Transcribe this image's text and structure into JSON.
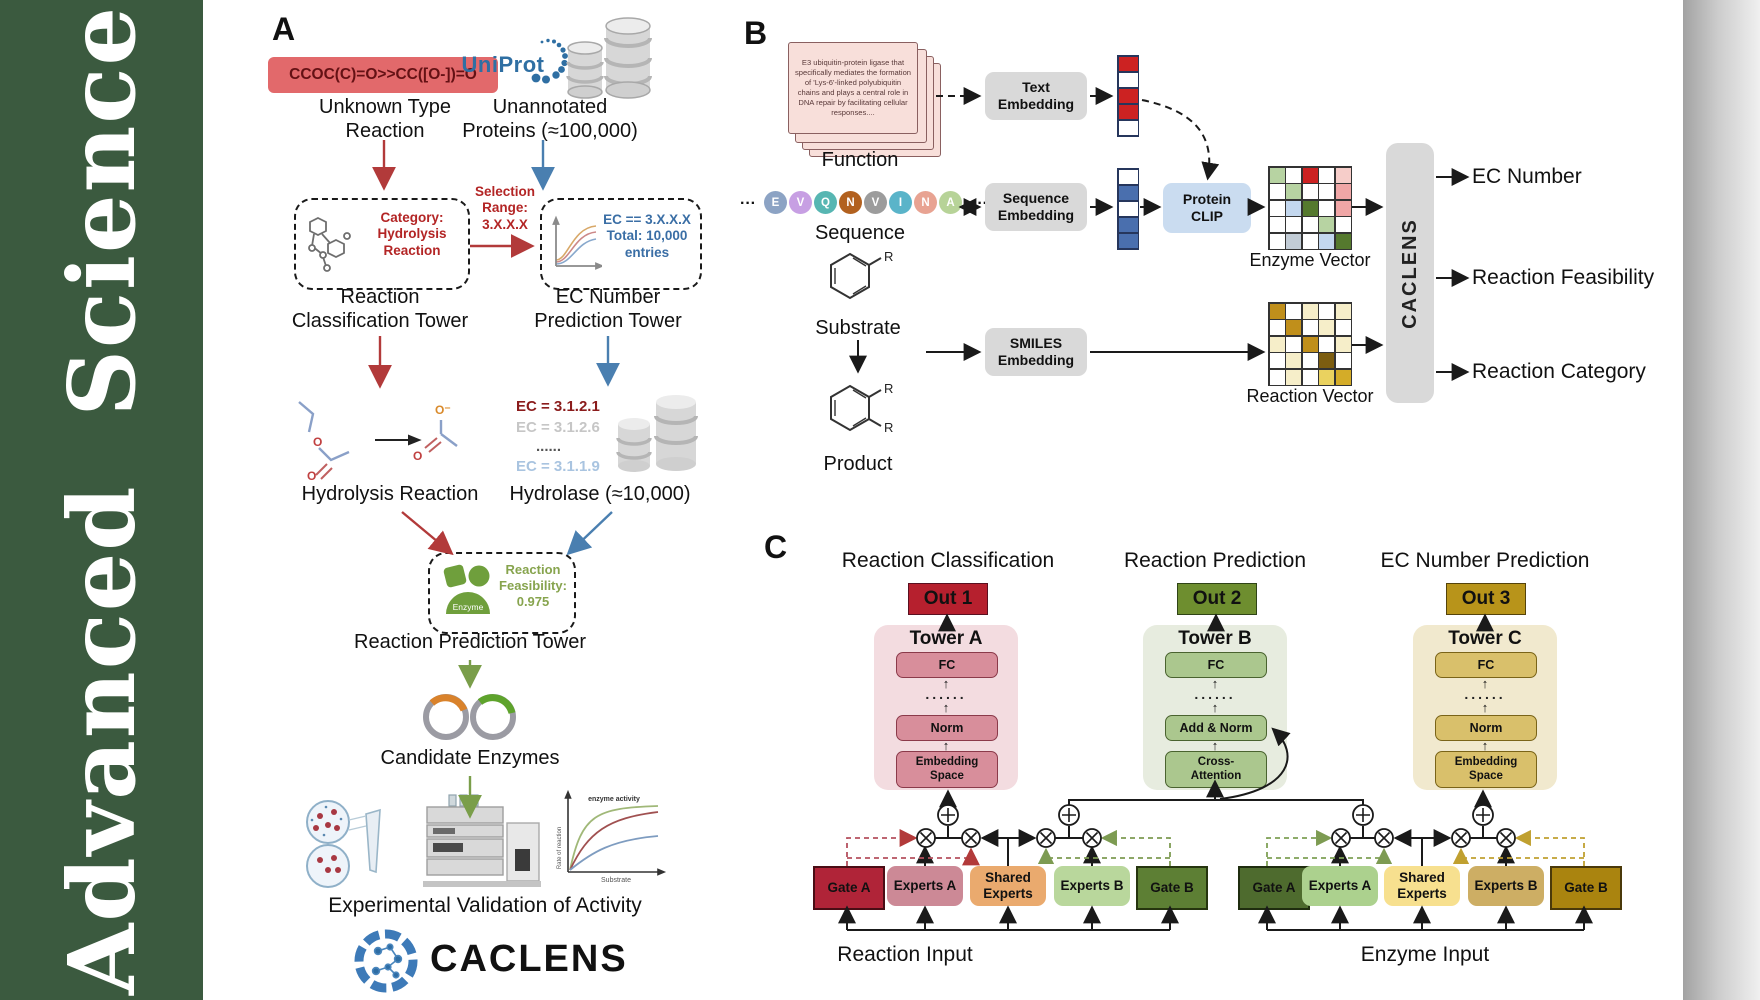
{
  "journal": {
    "name": "Advanced Science"
  },
  "panelA": {
    "label": "A",
    "smiles_box": "CCOC(C)=O>>CC([O-])=O",
    "unknown_reaction": "Unknown Type\nReaction",
    "uniprot_logo": "UniProt",
    "unannotated_proteins": "Unannotated\nProteins (≈100,000)",
    "category_box": "Category:\nHydrolysis\nReaction",
    "selection_range": "Selection\nRange:\n3.X.X.X",
    "ec_box": "EC == 3.X.X.X\nTotal: 10,000\nentries",
    "classification_tower": "Reaction\nClassification Tower",
    "ec_prediction_tower": "EC Number\nPrediction Tower",
    "ec_list": [
      "EC = 3.1.2.1",
      "EC = 3.1.2.6",
      "......",
      "EC = 3.1.1.9"
    ],
    "hydrolysis_reaction": "Hydrolysis Reaction",
    "hydrolase": "Hydrolase (≈10,000)",
    "enzyme_icon_label": "Enzyme",
    "feasibility_box": "Reaction\nFeasibility:\n0.975",
    "reaction_prediction_tower": "Reaction Prediction Tower",
    "candidate_enzymes": "Candidate Enzymes",
    "experimental_validation": "Experimental Validation of Activity",
    "brand": "CACLENS",
    "activity_chart": {
      "annotation": "enzyme activity",
      "ylabel": "Rate of reaction",
      "xlabel": "Substrate"
    }
  },
  "panelB": {
    "label": "B",
    "function_card_text": "E3 ubiquitin-protein ligase that specifically mediates the formation of 'Lys-6'-linked polyubiquitin chains and plays a central role in DNA repair by facilitating cellular responses....",
    "function_label": "Function",
    "sequence_letters": [
      "E",
      "V",
      "Q",
      "N",
      "V",
      "I",
      "N",
      "A"
    ],
    "sequence_ellipsis": "···",
    "sequence_label": "Sequence",
    "substituent": "R",
    "substrate_label": "Substrate",
    "product_label": "Product",
    "text_embedding": "Text\nEmbedding",
    "sequence_embedding": "Sequence\nEmbedding",
    "smiles_embedding": "SMILES\nEmbedding",
    "protein_clip": "Protein\nCLIP",
    "enzyme_vector_label": "Enzyme Vector",
    "reaction_vector_label": "Reaction Vector",
    "caclens_block": "CACLENS",
    "outputs": [
      "EC Number",
      "Reaction Feasibility",
      "Reaction Category"
    ],
    "text_vector": [
      "r",
      "w",
      "r",
      "r",
      "w"
    ],
    "sequence_vector": [
      "w",
      "b",
      "w",
      "b",
      "b"
    ],
    "enzyme_matrix": [
      [
        "g",
        "w",
        "r",
        "w",
        "lp"
      ],
      [
        "w",
        "g",
        "w",
        "w",
        "p"
      ],
      [
        "w",
        "lb",
        "dg",
        "w",
        "p"
      ],
      [
        "w",
        "w",
        "w",
        "g",
        "w"
      ],
      [
        "w",
        "gb",
        "w",
        "lb",
        "dg"
      ]
    ],
    "reaction_matrix": [
      [
        "go",
        "w",
        "c",
        "w",
        "c"
      ],
      [
        "w",
        "go",
        "w",
        "c",
        "w"
      ],
      [
        "c",
        "w",
        "go",
        "w",
        "c"
      ],
      [
        "w",
        "c",
        "w",
        "br",
        "w"
      ],
      [
        "w",
        "c",
        "w",
        "y",
        "dy"
      ]
    ],
    "sequence_colors": [
      "#8ca3c4",
      "#c79fe3",
      "#57b6b2",
      "#b2611f",
      "#9c9c9c",
      "#5ab4c9",
      "#e8a392",
      "#b7d398"
    ]
  },
  "panelC": {
    "label": "C",
    "columns": [
      {
        "title": "Reaction Classification",
        "out": "Out 1",
        "tower": "Tower A",
        "fc": "FC",
        "dots": "......",
        "mid": "Norm",
        "bottom": "Embedding\nSpace"
      },
      {
        "title": "Reaction Prediction",
        "out": "Out 2",
        "tower": "Tower B",
        "fc": "FC",
        "dots": "......",
        "mid": "Add & Norm",
        "bottom": "Cross-\nAttention"
      },
      {
        "title": "EC Number Prediction",
        "out": "Out 3",
        "tower": "Tower C",
        "fc": "FC",
        "dots": "......",
        "mid": "Norm",
        "bottom": "Embedding\nSpace"
      }
    ],
    "groups": [
      {
        "label": "Reaction Input",
        "gate_a": "Gate A",
        "experts_a": "Experts A",
        "shared": "Shared\nExperts",
        "experts_b": "Experts B",
        "gate_b": "Gate B"
      },
      {
        "label": "Enzyme Input",
        "gate_a": "Gate A",
        "experts_a": "Experts A",
        "shared": "Shared\nExperts",
        "experts_b": "Experts B",
        "gate_b": "Gate B"
      }
    ]
  },
  "colors": {
    "sidebar_green": "#3b5a3f",
    "accent_red": "#b23a3a",
    "accent_blue": "#4a7fb0",
    "accent_green": "#7a9e4a",
    "out1": "#b6202e",
    "out2": "#6e8e2f",
    "out3": "#b8941a"
  },
  "palette": {
    "w": "#ffffff",
    "b": "#4a6fae",
    "r": "#cc2222",
    "g": "#b7d3a2",
    "dg": "#55792e",
    "p": "#f0a6a6",
    "lp": "#f6cdc9",
    "lb": "#c3d7ee",
    "gb": "#c2ccd6",
    "go": "#c08f1b",
    "c": "#f6eec9",
    "br": "#7c5d10",
    "y": "#ead25f",
    "dy": "#d4ac28"
  }
}
